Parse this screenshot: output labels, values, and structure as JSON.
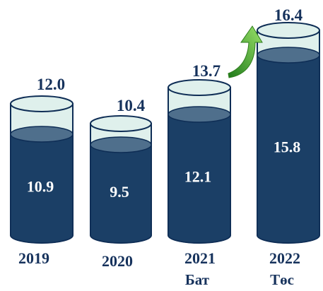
{
  "chart_data": {
    "type": "bar",
    "categories": [
      "2019",
      "2020",
      "2021",
      "2022"
    ],
    "category_sublabels": [
      "",
      "",
      "Бат",
      "Төс"
    ],
    "series": [
      {
        "values": [
          12.0,
          10.4,
          13.7,
          16.4
        ]
      },
      {
        "values": [
          10.9,
          9.5,
          12.1,
          15.8
        ]
      }
    ],
    "title": "",
    "xlabel": "",
    "ylabel": "",
    "ylim": [
      0,
      16.4
    ],
    "grid": false,
    "legend": "none",
    "colors": {
      "inner": "#1b3f66",
      "inner_top": "#4f6f8c",
      "outer_fill": "#dff0ec",
      "outline": "#0e2d55",
      "label": "#16325c",
      "arrow": "#5cb82f"
    }
  }
}
